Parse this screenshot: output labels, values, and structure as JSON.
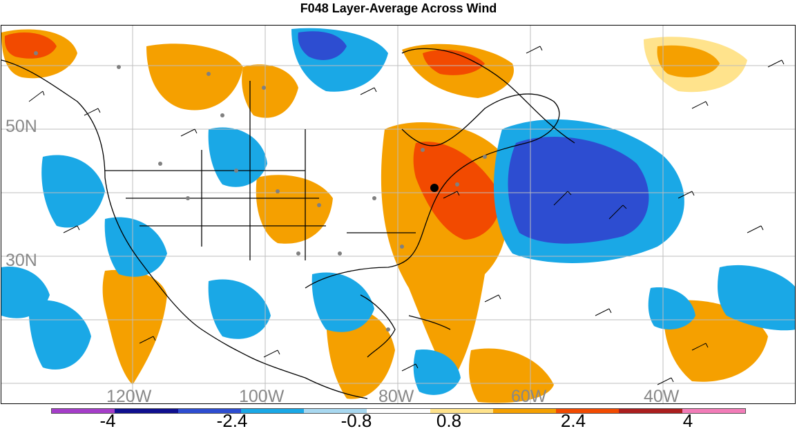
{
  "title": "F048 Layer-Average Across Wind",
  "map": {
    "lat_labels": [
      "50N",
      "30N"
    ],
    "lon_labels": [
      "120W",
      "100W",
      "80W",
      "60W",
      "40W"
    ]
  },
  "colorbar": {
    "colors": [
      "#a53dc9",
      "#0f0f8f",
      "#2d4dd1",
      "#1aa8e6",
      "#a8d8f0",
      "#ffffff",
      "#ffe38c",
      "#f5a000",
      "#f24a00",
      "#ab1e1e",
      "#f27cb8"
    ],
    "tick_labels": [
      "-4",
      "-2.4",
      "-0.8",
      "0.8",
      "2.4",
      "4"
    ]
  }
}
